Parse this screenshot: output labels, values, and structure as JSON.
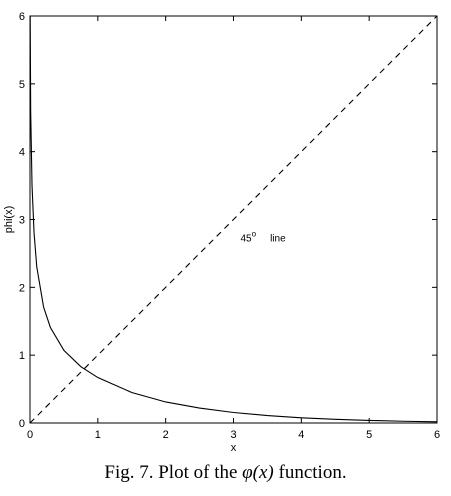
{
  "chart_data": {
    "type": "line",
    "xlabel": "x",
    "ylabel": "phi(x)",
    "xlim": [
      0,
      6
    ],
    "ylim": [
      0,
      6
    ],
    "xticks": [
      0,
      1,
      2,
      3,
      4,
      5,
      6
    ],
    "yticks": [
      0,
      1,
      2,
      3,
      4,
      5,
      6
    ],
    "grid": false,
    "series": [
      {
        "style": "solid",
        "x": [
          0.003,
          0.01,
          0.03,
          0.06,
          0.1,
          0.2,
          0.3,
          0.5,
          0.75,
          1.0,
          1.5,
          2.0,
          2.5,
          3.0,
          3.5,
          4.0,
          4.5,
          5.0,
          5.5,
          6.0
        ],
        "y": [
          6.0,
          4.6,
          3.5,
          2.8,
          2.3,
          1.71,
          1.41,
          1.07,
          0.83,
          0.67,
          0.45,
          0.31,
          0.22,
          0.155,
          0.11,
          0.077,
          0.054,
          0.038,
          0.026,
          0.018
        ]
      },
      {
        "style": "dashed",
        "x": [
          0,
          6
        ],
        "y": [
          0,
          6
        ]
      }
    ],
    "annotation": {
      "prefix": "45",
      "superscript": "o",
      "suffix": "line",
      "x": 3.0,
      "y": 2.75
    }
  },
  "caption": {
    "prefix": "Fig. 7. Plot of the ",
    "math": "φ(x)",
    "suffix": " function."
  }
}
